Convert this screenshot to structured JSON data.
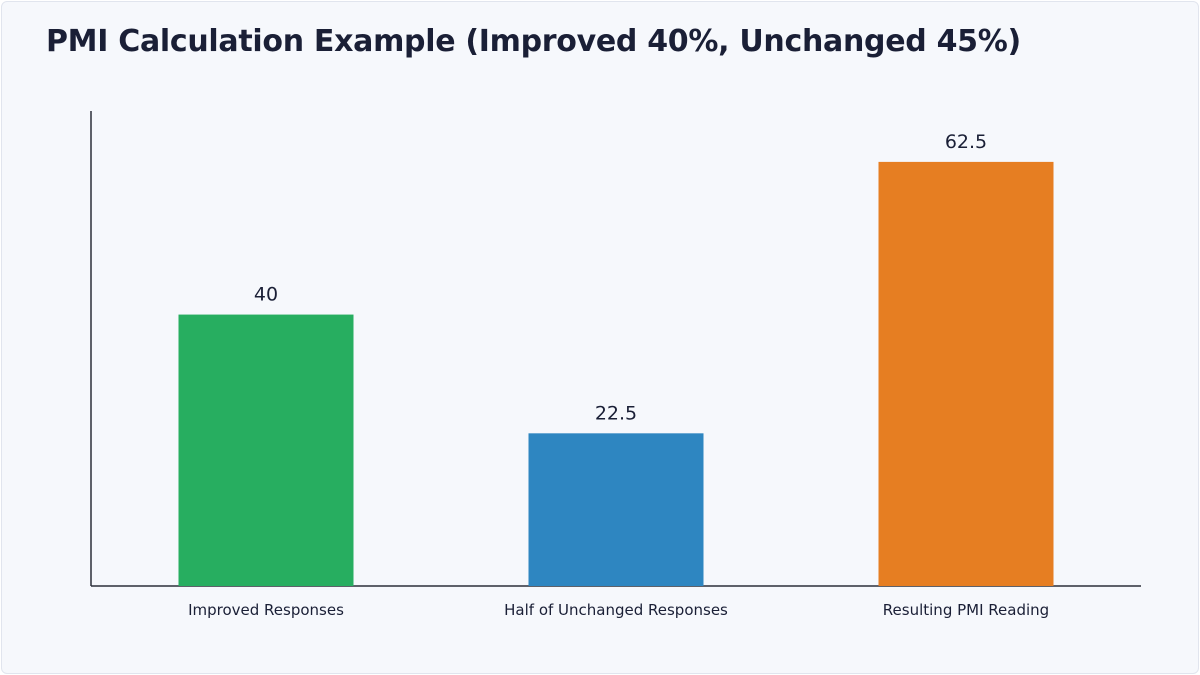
{
  "chart_data": {
    "type": "bar",
    "title": "PMI Calculation Example (Improved 40%, Unchanged 45%)",
    "xlabel": "",
    "ylabel": "",
    "categories": [
      "Improved Responses",
      "Half of Unchanged Responses",
      "Resulting PMI Reading"
    ],
    "values": [
      40,
      22.5,
      62.5
    ],
    "value_labels": [
      "40",
      "22.5",
      "62.5"
    ],
    "colors": [
      "#27ae60",
      "#2e86c1",
      "#e67e22"
    ],
    "ylim": [
      0,
      70
    ],
    "grid": false,
    "legend": "none"
  }
}
